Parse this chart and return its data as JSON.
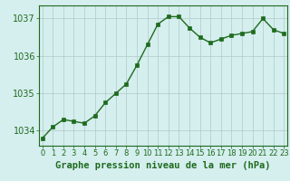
{
  "x": [
    0,
    1,
    2,
    3,
    4,
    5,
    6,
    7,
    8,
    9,
    10,
    11,
    12,
    13,
    14,
    15,
    16,
    17,
    18,
    19,
    20,
    21,
    22,
    23
  ],
  "y": [
    1033.8,
    1034.1,
    1034.3,
    1034.25,
    1034.2,
    1034.4,
    1034.75,
    1035.0,
    1035.25,
    1035.75,
    1036.3,
    1036.85,
    1037.05,
    1037.05,
    1036.75,
    1036.5,
    1036.35,
    1036.45,
    1036.55,
    1036.6,
    1036.65,
    1037.0,
    1036.7,
    1036.6
  ],
  "line_color": "#1e6b1e",
  "marker": "s",
  "markersize": 2.2,
  "linewidth": 1.0,
  "bg_color": "#d5eeee",
  "grid_color": "#b0c8c8",
  "ylabel_ticks": [
    1034,
    1035,
    1036,
    1037
  ],
  "xlim": [
    -0.3,
    23.3
  ],
  "ylim": [
    1033.6,
    1037.35
  ],
  "xlabel": "Graphe pression niveau de la mer (hPa)",
  "xlabel_color": "#1e6b1e",
  "tick_color": "#1e6b1e",
  "ytick_fontsize": 7.0,
  "xtick_fontsize": 6.0,
  "xlabel_fontsize": 7.5
}
